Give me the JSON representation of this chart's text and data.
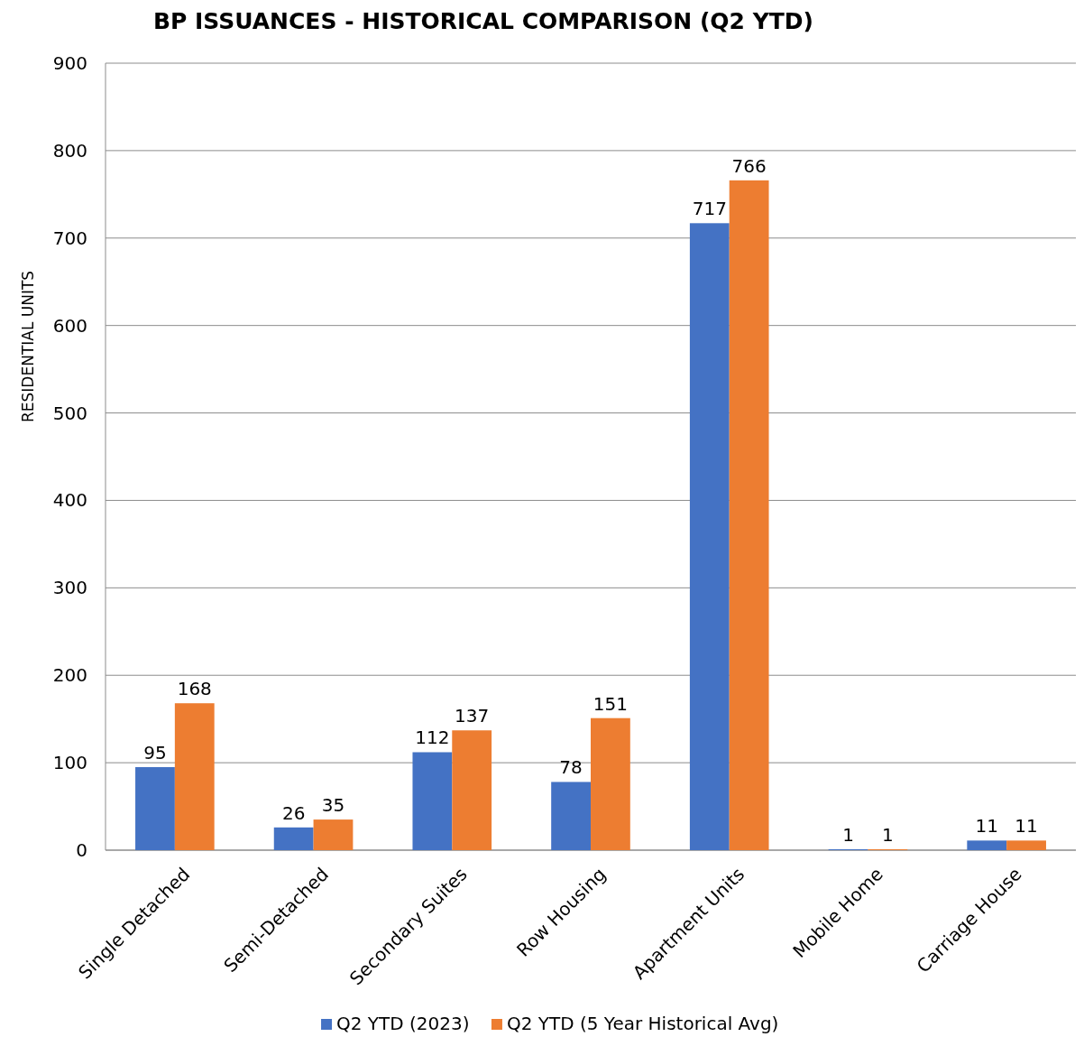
{
  "chart_data": {
    "type": "bar",
    "title": "BP ISSUANCES - HISTORICAL COMPARISON (Q2 YTD)",
    "ylabel": "RESIDENTIAL UNITS",
    "categories": [
      "Single Detached",
      "Semi-Detached",
      "Secondary Suites",
      "Row Housing",
      "Apartment Units",
      "Mobile Home",
      "Carriage House"
    ],
    "series": [
      {
        "name": "Q2 YTD (2023)",
        "color": "#4472c4",
        "values": [
          95,
          26,
          112,
          78,
          717,
          1,
          11
        ]
      },
      {
        "name": "Q2 YTD (5 Year Historical Avg)",
        "color": "#ed7d31",
        "values": [
          168,
          35,
          137,
          151,
          766,
          1,
          11
        ]
      }
    ],
    "ylim": [
      0,
      900
    ],
    "yticks": [
      0,
      100,
      200,
      300,
      400,
      500,
      600,
      700,
      800,
      900
    ],
    "grid": "y",
    "legend": "bottom",
    "data_labels": true
  }
}
